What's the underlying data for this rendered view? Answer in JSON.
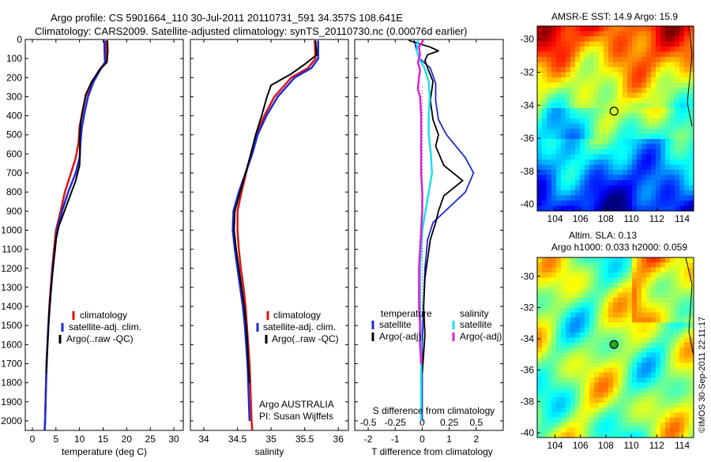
{
  "header": {
    "line1": "Argo profile: CS 5901664_110 30-Jul-2011 20110731_591 34.357S 108.641E",
    "line2": "Climatology: CARS2009. Satellite-adjusted climatology: synTS_20110730.nc (0.00076d earlier)"
  },
  "legend_common": {
    "climatology": "climatology",
    "satellite": "satellite-adj. clim.",
    "argo": "Argo(..raw -QC)"
  },
  "panel2_note": {
    "line1": "Argo AUSTRALIA",
    "line2": "PI: Susan Wijffels"
  },
  "panel3_legend": {
    "temperature_head": "temperature",
    "salinity_head": "salinity",
    "satellite": "satellite",
    "argo_adj": "Argo(-adj)"
  },
  "colors": {
    "climatology": "#e01010",
    "satellite": "#1a2ad8",
    "argo": "#000000",
    "sat_salinity": "#1de0ee",
    "argo_salinity": "#e020d8"
  },
  "map_top": {
    "title": "AMSR-E SST: 14.9 Argo: 15.9",
    "x_ticks": [
      "104",
      "106",
      "108",
      "110",
      "112",
      "114"
    ],
    "y_ticks": [
      "-30",
      "-32",
      "-34",
      "-36",
      "-38",
      "-40"
    ],
    "colormap": "jet",
    "argo_lon": 108.641,
    "argo_lat": -34.357
  },
  "map_bottom": {
    "title1": "Altim. SLA: 0.13",
    "title2": "Argo h1000: 0.033 h2000: 0.059",
    "x_ticks": [
      "104",
      "106",
      "108",
      "110",
      "112",
      "114"
    ],
    "y_ticks": [
      "-30",
      "-32",
      "-34",
      "-36",
      "-38",
      "-40"
    ],
    "colormap": "jet",
    "argo_lon": 108.641,
    "argo_lat": -34.357
  },
  "side_stamp": "©IMOS 30-Sep-2011 22:11:17",
  "chart_data": [
    {
      "type": "line",
      "xlabel": "temperature (deg C)",
      "ylabel": "",
      "xlim": [
        -1.5,
        32
      ],
      "ylim": [
        0,
        2050
      ],
      "y_inverted": true,
      "x_ticks": [
        0,
        5,
        10,
        15,
        20,
        25,
        30
      ],
      "y_ticks": [
        0,
        100,
        200,
        300,
        400,
        500,
        600,
        700,
        800,
        900,
        1000,
        1100,
        1200,
        1300,
        1400,
        1500,
        1600,
        1700,
        1800,
        1900,
        2000
      ],
      "series": [
        {
          "name": "climatology",
          "points": [
            [
              15.6,
              5
            ],
            [
              15.6,
              60
            ],
            [
              15.5,
              120
            ],
            [
              14.2,
              160
            ],
            [
              12.5,
              230
            ],
            [
              11.3,
              300
            ],
            [
              10.6,
              380
            ],
            [
              10.0,
              460
            ],
            [
              9.8,
              540
            ],
            [
              9.2,
              620
            ],
            [
              8.2,
              700
            ],
            [
              6.9,
              800
            ],
            [
              6.0,
              900
            ],
            [
              5.0,
              1000
            ],
            [
              4.6,
              1100
            ],
            [
              4.2,
              1200
            ],
            [
              3.9,
              1300
            ],
            [
              3.6,
              1400
            ],
            [
              3.4,
              1500
            ],
            [
              3.2,
              1600
            ],
            [
              3.0,
              1700
            ],
            [
              2.9,
              1800
            ],
            [
              2.8,
              1900
            ],
            [
              2.7,
              2000
            ],
            [
              2.6,
              2050
            ]
          ]
        },
        {
          "name": "satellite-adj. clim.",
          "points": [
            [
              15.3,
              5
            ],
            [
              15.3,
              60
            ],
            [
              15.4,
              120
            ],
            [
              14.6,
              150
            ],
            [
              13.0,
              220
            ],
            [
              11.8,
              300
            ],
            [
              11.1,
              380
            ],
            [
              10.5,
              460
            ],
            [
              10.2,
              540
            ],
            [
              10.0,
              620
            ],
            [
              9.2,
              700
            ],
            [
              7.6,
              800
            ],
            [
              6.3,
              900
            ],
            [
              5.2,
              1000
            ],
            [
              4.8,
              1100
            ],
            [
              4.3,
              1200
            ],
            [
              4.0,
              1300
            ],
            [
              3.7,
              1400
            ],
            [
              3.4,
              1500
            ],
            [
              3.2,
              1600
            ],
            [
              3.0,
              1700
            ],
            [
              2.9,
              1800
            ],
            [
              2.8,
              1900
            ],
            [
              2.7,
              2000
            ],
            [
              2.6,
              2050
            ]
          ]
        },
        {
          "name": "Argo(..raw -QC)",
          "points": [
            [
              15.9,
              5
            ],
            [
              16.0,
              60
            ],
            [
              15.8,
              120
            ],
            [
              14.4,
              155
            ],
            [
              12.6,
              220
            ],
            [
              11.3,
              290
            ],
            [
              10.8,
              360
            ],
            [
              10.2,
              440
            ],
            [
              10.0,
              520
            ],
            [
              10.1,
              600
            ],
            [
              10.0,
              660
            ],
            [
              9.2,
              740
            ],
            [
              8.0,
              820
            ],
            [
              6.8,
              900
            ],
            [
              5.6,
              980
            ],
            [
              5.0,
              1050
            ],
            [
              4.6,
              1150
            ],
            [
              4.2,
              1250
            ],
            [
              3.8,
              1350
            ],
            [
              3.5,
              1450
            ],
            [
              3.3,
              1550
            ],
            [
              3.1,
              1650
            ],
            [
              3.0,
              1750
            ]
          ]
        }
      ]
    },
    {
      "type": "line",
      "xlabel": "salinity",
      "ylabel": "",
      "xlim": [
        33.8,
        36.15
      ],
      "ylim": [
        0,
        2050
      ],
      "y_inverted": true,
      "x_ticks": [
        34,
        34.5,
        35,
        35.5,
        36
      ],
      "series": [
        {
          "name": "climatology",
          "points": [
            [
              35.65,
              5
            ],
            [
              35.66,
              100
            ],
            [
              35.55,
              150
            ],
            [
              35.3,
              200
            ],
            [
              35.05,
              300
            ],
            [
              34.9,
              400
            ],
            [
              34.78,
              500
            ],
            [
              34.7,
              600
            ],
            [
              34.63,
              700
            ],
            [
              34.56,
              800
            ],
            [
              34.5,
              900
            ],
            [
              34.5,
              1000
            ],
            [
              34.52,
              1100
            ],
            [
              34.55,
              1200
            ],
            [
              34.59,
              1300
            ],
            [
              34.62,
              1400
            ],
            [
              34.64,
              1500
            ],
            [
              34.66,
              1600
            ],
            [
              34.68,
              1700
            ],
            [
              34.69,
              1800
            ],
            [
              34.7,
              1900
            ],
            [
              34.71,
              2000
            ],
            [
              34.72,
              2050
            ]
          ]
        },
        {
          "name": "satellite-adj. clim.",
          "points": [
            [
              35.7,
              5
            ],
            [
              35.7,
              100
            ],
            [
              35.6,
              150
            ],
            [
              35.35,
              200
            ],
            [
              35.1,
              300
            ],
            [
              34.93,
              400
            ],
            [
              34.8,
              500
            ],
            [
              34.72,
              600
            ],
            [
              34.62,
              700
            ],
            [
              34.52,
              800
            ],
            [
              34.44,
              900
            ],
            [
              34.43,
              1000
            ],
            [
              34.46,
              1100
            ],
            [
              34.5,
              1200
            ],
            [
              34.54,
              1300
            ],
            [
              34.58,
              1400
            ],
            [
              34.61,
              1500
            ],
            [
              34.63,
              1600
            ],
            [
              34.65,
              1700
            ],
            [
              34.66,
              1800
            ],
            [
              34.67,
              1900
            ],
            [
              34.68,
              2000
            ]
          ]
        },
        {
          "name": "Argo(..raw -QC)",
          "points": [
            [
              35.66,
              5
            ],
            [
              35.68,
              80
            ],
            [
              35.5,
              130
            ],
            [
              35.3,
              180
            ],
            [
              35.0,
              240
            ],
            [
              34.94,
              300
            ],
            [
              34.86,
              400
            ],
            [
              34.77,
              500
            ],
            [
              34.7,
              600
            ],
            [
              34.62,
              700
            ],
            [
              34.54,
              800
            ],
            [
              34.46,
              900
            ],
            [
              34.45,
              1000
            ],
            [
              34.48,
              1100
            ],
            [
              34.52,
              1200
            ],
            [
              34.56,
              1300
            ],
            [
              34.6,
              1400
            ],
            [
              34.63,
              1500
            ],
            [
              34.65,
              1600
            ],
            [
              34.66,
              1700
            ],
            [
              34.68,
              1800
            ]
          ]
        }
      ]
    },
    {
      "type": "line",
      "xlabel": "T difference from climatology",
      "x2label": "S difference from climatology",
      "ylabel": "",
      "xlim": [
        -2.5,
        3.0
      ],
      "x2lim": [
        -0.625,
        0.75
      ],
      "ylim": [
        0,
        2050
      ],
      "y_inverted": true,
      "x_ticks": [
        -2,
        -1,
        0,
        1,
        2
      ],
      "x2_ticks": [
        -0.5,
        -0.25,
        0,
        0.25,
        0.5
      ],
      "series": [
        {
          "name": "T satellite",
          "points": [
            [
              -0.3,
              5
            ],
            [
              -0.2,
              60
            ],
            [
              -0.1,
              100
            ],
            [
              0.3,
              150
            ],
            [
              0.5,
              230
            ],
            [
              0.5,
              320
            ],
            [
              0.6,
              420
            ],
            [
              0.9,
              500
            ],
            [
              1.6,
              620
            ],
            [
              1.9,
              700
            ],
            [
              1.6,
              800
            ],
            [
              1.0,
              880
            ],
            [
              0.4,
              960
            ],
            [
              0.2,
              1050
            ],
            [
              0.1,
              1200
            ],
            [
              0.05,
              1400
            ],
            [
              0.0,
              1600
            ],
            [
              0.0,
              1800
            ],
            [
              0.0,
              2000
            ]
          ]
        },
        {
          "name": "T Argo(-adj)",
          "points": [
            [
              -0.5,
              5
            ],
            [
              0.3,
              40
            ],
            [
              0.6,
              60
            ],
            [
              0.2,
              80
            ],
            [
              0.1,
              110
            ],
            [
              0.2,
              150
            ],
            [
              0.4,
              220
            ],
            [
              0.3,
              320
            ],
            [
              0.4,
              420
            ],
            [
              0.6,
              500
            ],
            [
              0.5,
              560
            ],
            [
              0.8,
              660
            ],
            [
              1.5,
              740
            ],
            [
              0.8,
              820
            ],
            [
              0.6,
              900
            ],
            [
              0.5,
              960
            ],
            [
              0.3,
              1050
            ],
            [
              0.2,
              1150
            ],
            [
              0.1,
              1250
            ],
            [
              0.05,
              1400
            ],
            [
              0.1,
              1550
            ],
            [
              0.0,
              1750
            ]
          ]
        },
        {
          "name": "S satellite",
          "points": [
            [
              -0.04,
              5
            ],
            [
              -0.05,
              60
            ],
            [
              -0.03,
              100
            ],
            [
              0.02,
              150
            ],
            [
              0.06,
              220
            ],
            [
              0.07,
              300
            ],
            [
              0.06,
              400
            ],
            [
              0.06,
              500
            ],
            [
              0.08,
              600
            ],
            [
              0.09,
              700
            ],
            [
              0.06,
              800
            ],
            [
              0.03,
              900
            ],
            [
              0.0,
              1000
            ],
            [
              -0.01,
              1100
            ],
            [
              -0.02,
              1200
            ],
            [
              -0.02,
              1400
            ],
            [
              -0.01,
              1600
            ],
            [
              -0.01,
              1800
            ],
            [
              -0.01,
              2000
            ]
          ]
        },
        {
          "name": "S Argo(-adj)",
          "points": [
            [
              0.01,
              5
            ],
            [
              -0.03,
              40
            ],
            [
              -0.02,
              80
            ],
            [
              -0.04,
              120
            ],
            [
              -0.02,
              160
            ],
            [
              -0.03,
              200
            ],
            [
              -0.04,
              260
            ],
            [
              -0.02,
              300
            ],
            [
              -0.01,
              400
            ],
            [
              -0.01,
              500
            ],
            [
              -0.01,
              600
            ],
            [
              -0.01,
              700
            ],
            [
              0.0,
              800
            ],
            [
              0.0,
              900
            ],
            [
              -0.01,
              1000
            ],
            [
              -0.02,
              1100
            ],
            [
              -0.03,
              1200
            ],
            [
              -0.03,
              1300
            ],
            [
              -0.03,
              1400
            ],
            [
              -0.02,
              1500
            ],
            [
              -0.02,
              1600
            ],
            [
              -0.01,
              1700
            ]
          ]
        }
      ]
    }
  ]
}
